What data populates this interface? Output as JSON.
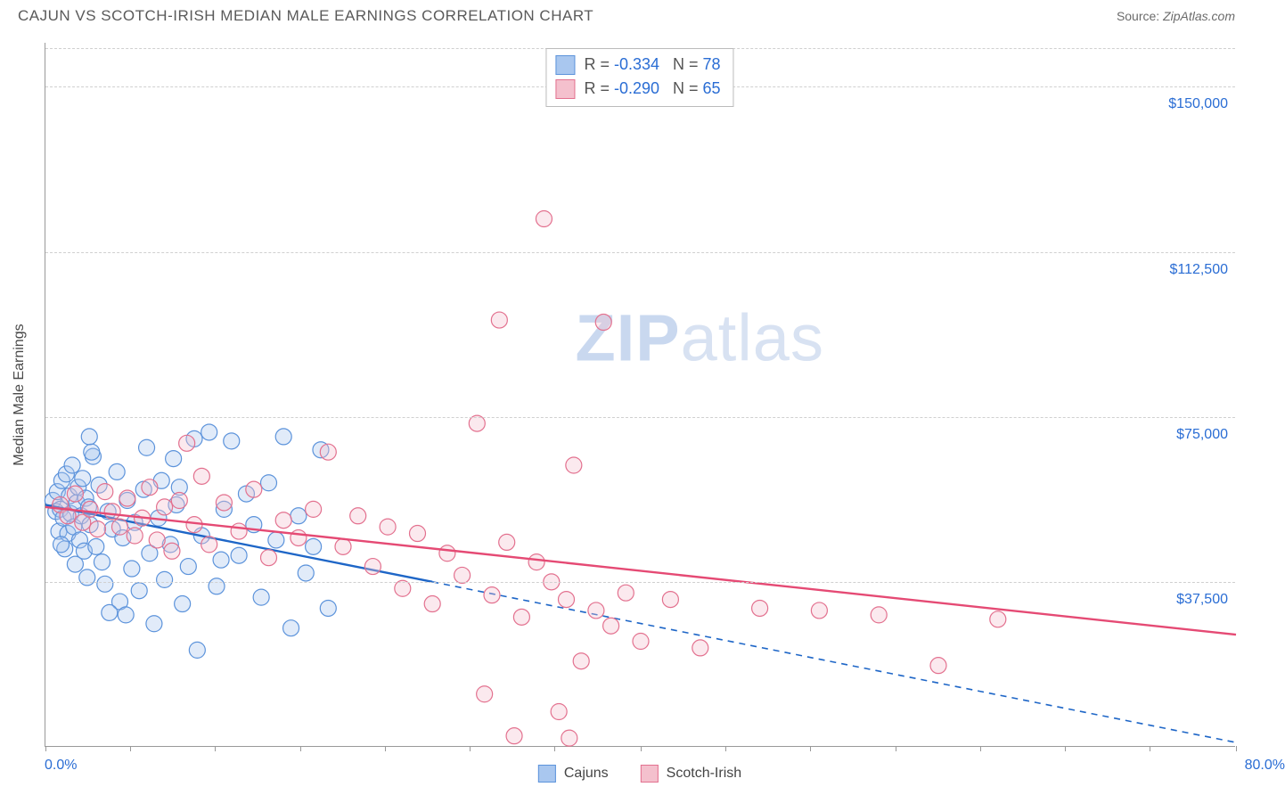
{
  "header": {
    "title": "CAJUN VS SCOTCH-IRISH MEDIAN MALE EARNINGS CORRELATION CHART",
    "source_label": "Source:",
    "source_value": "ZipAtlas.com"
  },
  "chart": {
    "type": "scatter",
    "y_axis_title": "Median Male Earnings",
    "background_color": "#ffffff",
    "grid_color": "#d0d0d0",
    "axis_color": "#999999",
    "tick_label_color": "#2a6dd4",
    "xlim": [
      0,
      80
    ],
    "ylim": [
      0,
      160000
    ],
    "x_ticks": [
      0,
      5.7,
      11.4,
      17.1,
      22.8,
      28.5,
      34.2,
      40,
      45.7,
      51.4,
      57.1,
      62.8,
      68.5,
      74.2,
      80
    ],
    "x_tick_labels": {
      "left": "0.0%",
      "right": "80.0%"
    },
    "y_gridlines": [
      {
        "value": 37500,
        "label": "$37,500"
      },
      {
        "value": 75000,
        "label": "$75,000"
      },
      {
        "value": 112500,
        "label": "$112,500"
      },
      {
        "value": 150000,
        "label": "$150,000"
      }
    ],
    "marker_radius": 9,
    "marker_stroke_width": 1.2,
    "marker_fill_opacity": 0.35,
    "trend_line_width": 2.4,
    "watermark": {
      "prefix": "ZIP",
      "suffix": "atlas"
    },
    "bottom_legend": [
      {
        "label": "Cajuns",
        "fill": "#a9c7ef",
        "stroke": "#5c93db"
      },
      {
        "label": "Scotch-Irish",
        "fill": "#f4c0cd",
        "stroke": "#e3718f"
      }
    ],
    "stats_legend": [
      {
        "fill": "#a9c7ef",
        "stroke": "#5c93db",
        "r": "-0.334",
        "n": "78"
      },
      {
        "fill": "#f4c0cd",
        "stroke": "#e3718f",
        "r": "-0.290",
        "n": "65"
      }
    ],
    "series": [
      {
        "name": "Cajuns",
        "fill": "#a9c7ef",
        "stroke": "#5c93db",
        "trend_color": "#1e66c7",
        "trend": {
          "x1": 0,
          "y1": 55000,
          "x2": 26,
          "y2": 37500,
          "dash_x2": 80,
          "dash_y2": 1000
        },
        "points": [
          [
            0.5,
            56000
          ],
          [
            0.7,
            53500
          ],
          [
            0.8,
            58000
          ],
          [
            0.9,
            49000
          ],
          [
            1.0,
            54000
          ],
          [
            1.1,
            60500
          ],
          [
            1.2,
            52000
          ],
          [
            1.3,
            45000
          ],
          [
            1.4,
            62000
          ],
          [
            1.5,
            48500
          ],
          [
            1.6,
            57000
          ],
          [
            1.7,
            53000
          ],
          [
            1.8,
            64000
          ],
          [
            1.9,
            50000
          ],
          [
            2.0,
            41500
          ],
          [
            2.1,
            55500
          ],
          [
            2.2,
            59000
          ],
          [
            2.3,
            47000
          ],
          [
            2.4,
            52500
          ],
          [
            2.5,
            61000
          ],
          [
            2.6,
            44500
          ],
          [
            2.7,
            56500
          ],
          [
            2.8,
            38500
          ],
          [
            2.9,
            54500
          ],
          [
            3.0,
            50500
          ],
          [
            3.2,
            66000
          ],
          [
            3.4,
            45500
          ],
          [
            3.6,
            59500
          ],
          [
            3.8,
            42000
          ],
          [
            4.0,
            37000
          ],
          [
            4.2,
            53500
          ],
          [
            4.5,
            49500
          ],
          [
            4.8,
            62500
          ],
          [
            5.0,
            33000
          ],
          [
            5.2,
            47500
          ],
          [
            5.5,
            56000
          ],
          [
            5.8,
            40500
          ],
          [
            6.0,
            51000
          ],
          [
            6.3,
            35500
          ],
          [
            6.6,
            58500
          ],
          [
            7.0,
            44000
          ],
          [
            7.3,
            28000
          ],
          [
            7.6,
            52000
          ],
          [
            8.0,
            38000
          ],
          [
            8.4,
            46000
          ],
          [
            8.8,
            55000
          ],
          [
            9.2,
            32500
          ],
          [
            9.6,
            41000
          ],
          [
            10.0,
            70000
          ],
          [
            10.5,
            48000
          ],
          [
            11.0,
            71500
          ],
          [
            11.5,
            36500
          ],
          [
            12.0,
            54000
          ],
          [
            12.5,
            69500
          ],
          [
            13.0,
            43500
          ],
          [
            13.5,
            57500
          ],
          [
            14.0,
            50500
          ],
          [
            14.5,
            34000
          ],
          [
            15.0,
            60000
          ],
          [
            15.5,
            47000
          ],
          [
            16.0,
            70500
          ],
          [
            16.5,
            27000
          ],
          [
            17.0,
            52500
          ],
          [
            17.5,
            39500
          ],
          [
            18.0,
            45500
          ],
          [
            18.5,
            67500
          ],
          [
            19.0,
            31500
          ],
          [
            10.2,
            22000
          ],
          [
            5.4,
            30000
          ],
          [
            6.8,
            68000
          ],
          [
            8.6,
            65500
          ],
          [
            3.1,
            67000
          ],
          [
            4.3,
            30500
          ],
          [
            9.0,
            59000
          ],
          [
            11.8,
            42500
          ],
          [
            7.8,
            60500
          ],
          [
            2.95,
            70500
          ],
          [
            1.05,
            46000
          ]
        ]
      },
      {
        "name": "Scotch-Irish",
        "fill": "#f4c0cd",
        "stroke": "#e3718f",
        "trend_color": "#e54a74",
        "trend": {
          "x1": 0,
          "y1": 54500,
          "x2": 80,
          "y2": 25500
        },
        "points": [
          [
            1.0,
            55000
          ],
          [
            1.5,
            52500
          ],
          [
            2.0,
            57500
          ],
          [
            2.5,
            51000
          ],
          [
            3.0,
            54000
          ],
          [
            3.5,
            49500
          ],
          [
            4.0,
            58000
          ],
          [
            4.5,
            53500
          ],
          [
            5.0,
            50000
          ],
          [
            5.5,
            56500
          ],
          [
            6.0,
            48000
          ],
          [
            6.5,
            52000
          ],
          [
            7.0,
            59000
          ],
          [
            7.5,
            47000
          ],
          [
            8.0,
            54500
          ],
          [
            8.5,
            44500
          ],
          [
            9.0,
            56000
          ],
          [
            9.5,
            69000
          ],
          [
            10.0,
            50500
          ],
          [
            10.5,
            61500
          ],
          [
            11.0,
            46000
          ],
          [
            12.0,
            55500
          ],
          [
            13.0,
            49000
          ],
          [
            14.0,
            58500
          ],
          [
            15.0,
            43000
          ],
          [
            16.0,
            51500
          ],
          [
            17.0,
            47500
          ],
          [
            18.0,
            54000
          ],
          [
            19.0,
            67000
          ],
          [
            20.0,
            45500
          ],
          [
            21.0,
            52500
          ],
          [
            22.0,
            41000
          ],
          [
            23.0,
            50000
          ],
          [
            24.0,
            36000
          ],
          [
            25.0,
            48500
          ],
          [
            26.0,
            32500
          ],
          [
            27.0,
            44000
          ],
          [
            28.0,
            39000
          ],
          [
            29.0,
            73500
          ],
          [
            30.0,
            34500
          ],
          [
            30.5,
            97000
          ],
          [
            31.0,
            46500
          ],
          [
            32.0,
            29500
          ],
          [
            33.0,
            42000
          ],
          [
            33.5,
            120000
          ],
          [
            34.0,
            37500
          ],
          [
            34.5,
            8000
          ],
          [
            35.0,
            33500
          ],
          [
            35.5,
            64000
          ],
          [
            36.0,
            19500
          ],
          [
            37.0,
            31000
          ],
          [
            37.5,
            96500
          ],
          [
            38.0,
            27500
          ],
          [
            39.0,
            35000
          ],
          [
            40.0,
            24000
          ],
          [
            42.0,
            33500
          ],
          [
            44.0,
            22500
          ],
          [
            48.0,
            31500
          ],
          [
            52.0,
            31000
          ],
          [
            56.0,
            30000
          ],
          [
            60.0,
            18500
          ],
          [
            64.0,
            29000
          ],
          [
            31.5,
            2500
          ],
          [
            35.2,
            2000
          ],
          [
            29.5,
            12000
          ]
        ]
      }
    ]
  }
}
